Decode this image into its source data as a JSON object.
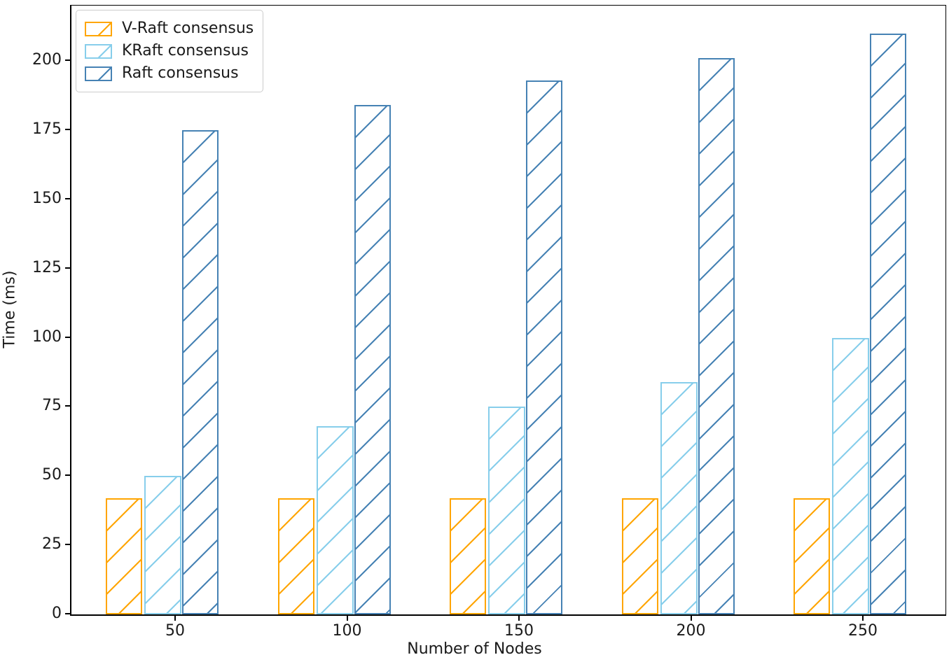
{
  "figure": {
    "background": "#ffffff"
  },
  "chart_data": {
    "type": "bar",
    "title": "",
    "xlabel": "Number of Nodes",
    "ylabel": "Time (ms)",
    "categories": [
      "50",
      "100",
      "150",
      "200",
      "250"
    ],
    "series": [
      {
        "name": "V-Raft consensus",
        "color": "#FFA500",
        "hatch": "/",
        "values": [
          42,
          42,
          42,
          42,
          42
        ]
      },
      {
        "name": "KRaft consensus",
        "color": "#87CEEB",
        "hatch": "/",
        "values": [
          50,
          68,
          75,
          84,
          100
        ]
      },
      {
        "name": "Raft consensus",
        "color": "#4682B4",
        "hatch": "/",
        "values": [
          175,
          184,
          193,
          201,
          210
        ]
      }
    ],
    "ylim": [
      0,
      220
    ],
    "yticks": [
      0,
      25,
      50,
      75,
      100,
      125,
      150,
      175,
      200
    ],
    "grid": false,
    "legend_position": "upper left",
    "bar_style": "unfilled-hatched"
  }
}
